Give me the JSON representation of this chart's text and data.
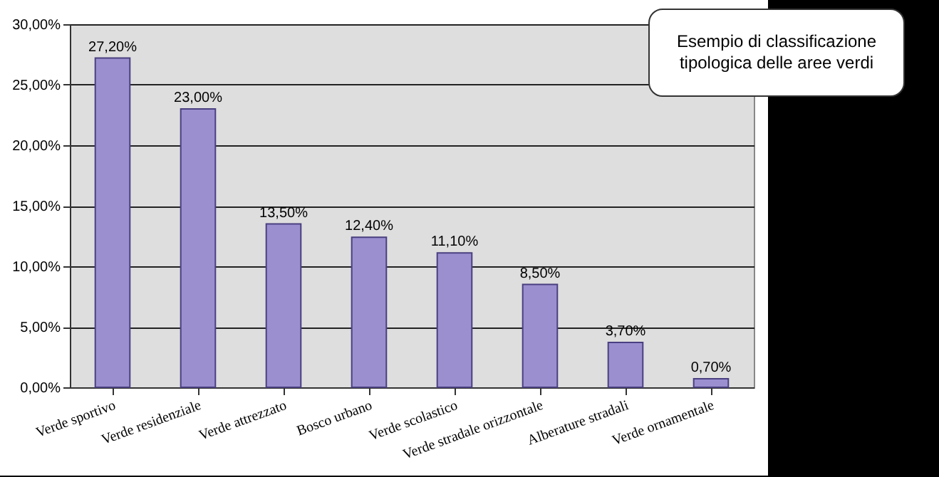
{
  "chart_data": {
    "type": "bar",
    "categories": [
      "Verde sportivo",
      "Verde residenziale",
      "Verde attrezzato",
      "Bosco urbano",
      "Verde scolastico",
      "Verde stradale orizzontale",
      "Alberature stradali",
      "Verde ornamentale"
    ],
    "values": [
      27.2,
      23.0,
      13.5,
      12.4,
      11.1,
      8.5,
      3.7,
      0.7
    ],
    "value_labels": [
      "27,20%",
      "23,00%",
      "13,50%",
      "12,40%",
      "11,10%",
      "8,50%",
      "3,70%",
      "0,70%"
    ],
    "color": "#9b8fd0",
    "ylim": [
      0,
      30
    ],
    "yticks": [
      {
        "value": 0,
        "label": "0,00%"
      },
      {
        "value": 5,
        "label": "5,00%"
      },
      {
        "value": 10,
        "label": "10,00%"
      },
      {
        "value": 15,
        "label": "15,00%"
      },
      {
        "value": 20,
        "label": "20,00%"
      },
      {
        "value": 25,
        "label": "25,00%"
      },
      {
        "value": 30,
        "label": "30,00%"
      }
    ],
    "grid": "y",
    "annotations": [
      "Esempio di classificazione tipologica delle aree verdi"
    ]
  }
}
